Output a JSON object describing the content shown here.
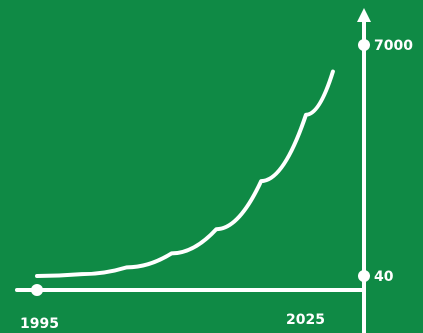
{
  "colors": {
    "background": "#0f8a45",
    "foreground": "#ffffff"
  },
  "chart_data": {
    "type": "line",
    "x_ticks": [
      "1995",
      "2025"
    ],
    "y_ticks": [
      "40",
      "7000"
    ],
    "series": [
      {
        "x": [
          1995,
          2000,
          2005,
          2010,
          2015,
          2020,
          2025,
          2028
        ],
        "values": [
          40,
          95,
          300,
          720,
          1450,
          2900,
          4900,
          6200
        ]
      }
    ],
    "xlim": [
      1995,
      2025
    ],
    "ylim": [
      40,
      7000
    ],
    "grid": false,
    "legend": "none"
  }
}
